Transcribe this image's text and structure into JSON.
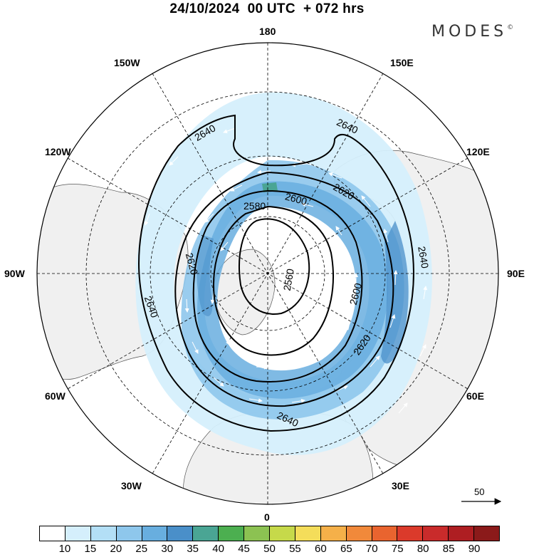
{
  "header": {
    "title": "24/10/2024  00 UTC  + 072 hrs",
    "brand": "MODES",
    "brand_mark": "©"
  },
  "map": {
    "projection": "north polar stereographic",
    "longitude_labels": {
      "top": "180",
      "top_left": "150W",
      "top_right": "150E",
      "upper_left": "120W",
      "upper_right": "120E",
      "left": "90W",
      "right": "90E",
      "lower_left": "60W",
      "lower_right": "60E",
      "bottom_left": "30W",
      "bottom_right": "30E",
      "bottom": "0"
    },
    "contour_labels": [
      "2640",
      "2640",
      "2620",
      "2600",
      "2580",
      "2640",
      "2620",
      "2560",
      "2600",
      "2640",
      "2620",
      "2640",
      "2640"
    ],
    "vector_scale_label": "50",
    "land_color": "#f0f0f0",
    "ocean_color": "#ffffff"
  },
  "colorbar": {
    "ticks": [
      "10",
      "15",
      "20",
      "25",
      "30",
      "35",
      "40",
      "45",
      "50",
      "55",
      "60",
      "65",
      "70",
      "75",
      "80",
      "85",
      "90"
    ],
    "colors": [
      "#ffffff",
      "#d5effc",
      "#b3dff6",
      "#8ec7ec",
      "#68aedf",
      "#4a8fc9",
      "#4aa594",
      "#4caf50",
      "#8cc252",
      "#c6d94a",
      "#f4dd5a",
      "#f5b049",
      "#f1893a",
      "#e9642f",
      "#db3a2b",
      "#c92b2b",
      "#ae1e22",
      "#8b1a1a"
    ]
  }
}
